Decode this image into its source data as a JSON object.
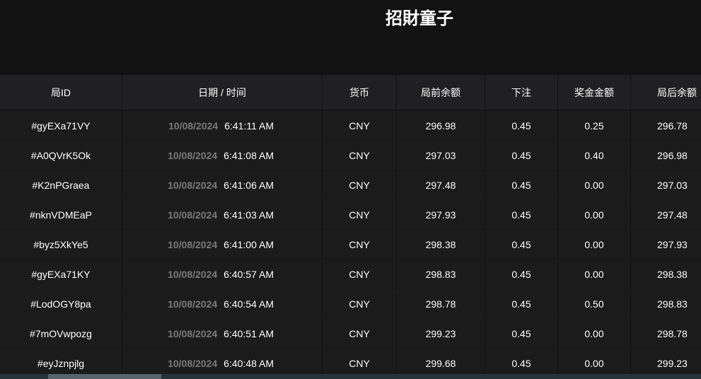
{
  "title": "招財童子",
  "columns": [
    "局ID",
    "日期 / 时间",
    "货币",
    "局前余额",
    "下注",
    "奖金金额",
    "局后余额"
  ],
  "rows": [
    {
      "id": "#gyEXa71VY",
      "date": "10/08/2024",
      "time": "6:41:11 AM",
      "currency": "CNY",
      "before": "296.98",
      "bet": "0.45",
      "win": "0.25",
      "after": "296.78"
    },
    {
      "id": "#A0QVrK5Ok",
      "date": "10/08/2024",
      "time": "6:41:08 AM",
      "currency": "CNY",
      "before": "297.03",
      "bet": "0.45",
      "win": "0.40",
      "after": "296.98"
    },
    {
      "id": "#K2nPGraea",
      "date": "10/08/2024",
      "time": "6:41:06 AM",
      "currency": "CNY",
      "before": "297.48",
      "bet": "0.45",
      "win": "0.00",
      "after": "297.03"
    },
    {
      "id": "#nknVDMEaP",
      "date": "10/08/2024",
      "time": "6:41:03 AM",
      "currency": "CNY",
      "before": "297.93",
      "bet": "0.45",
      "win": "0.00",
      "after": "297.48"
    },
    {
      "id": "#byz5XkYe5",
      "date": "10/08/2024",
      "time": "6:41:00 AM",
      "currency": "CNY",
      "before": "298.38",
      "bet": "0.45",
      "win": "0.00",
      "after": "297.93"
    },
    {
      "id": "#gyEXa71KY",
      "date": "10/08/2024",
      "time": "6:40:57 AM",
      "currency": "CNY",
      "before": "298.83",
      "bet": "0.45",
      "win": "0.00",
      "after": "298.38"
    },
    {
      "id": "#LodOGY8pa",
      "date": "10/08/2024",
      "time": "6:40:54 AM",
      "currency": "CNY",
      "before": "298.78",
      "bet": "0.45",
      "win": "0.50",
      "after": "298.83"
    },
    {
      "id": "#7mOVwpozg",
      "date": "10/08/2024",
      "time": "6:40:51 AM",
      "currency": "CNY",
      "before": "299.23",
      "bet": "0.45",
      "win": "0.00",
      "after": "298.78"
    },
    {
      "id": "#eyJznpjlg",
      "date": "10/08/2024",
      "time": "6:40:48 AM",
      "currency": "CNY",
      "before": "299.68",
      "bet": "0.45",
      "win": "0.00",
      "after": "299.23"
    }
  ]
}
